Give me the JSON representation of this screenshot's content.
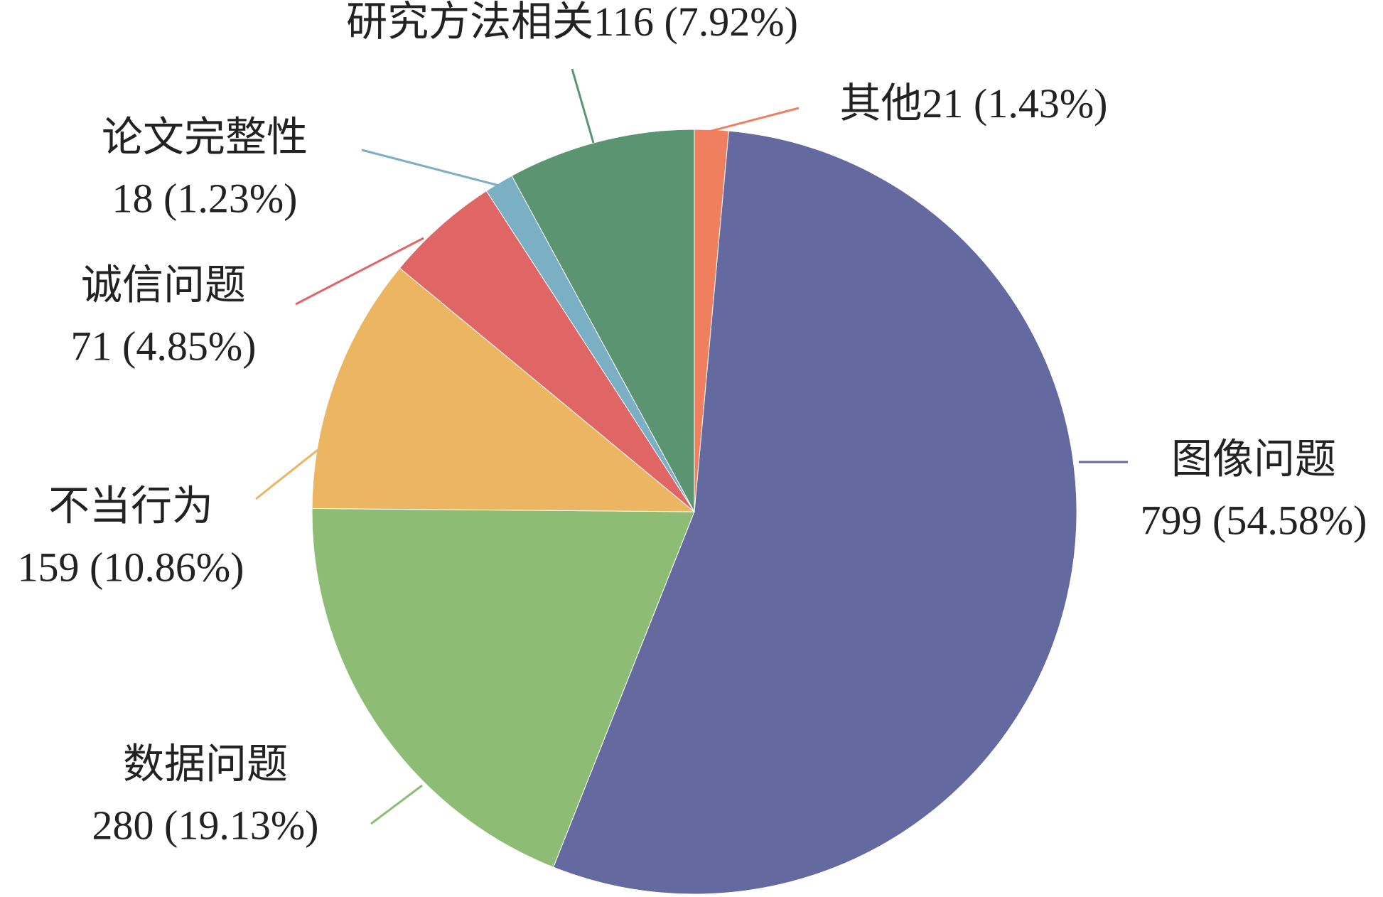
{
  "chart_data": {
    "type": "pie",
    "categories": [
      "其他",
      "图像问题",
      "数据问题",
      "不当行为",
      "诚信问题",
      "论文完整性",
      "研究方法相关"
    ],
    "values": [
      21,
      799,
      280,
      159,
      71,
      18,
      116
    ],
    "value_labels": [
      "21 (1.43%)",
      "799 (54.58%)",
      "280 (19.13%)",
      "159 (10.86%)",
      "71 (4.85%)",
      "18 (1.23%)",
      "116 (7.92%)"
    ],
    "colors": [
      "#ef7f5f",
      "#6469a0",
      "#8dbd74",
      "#ecb562",
      "#e06666",
      "#7aafc4",
      "#5a9470"
    ]
  }
}
